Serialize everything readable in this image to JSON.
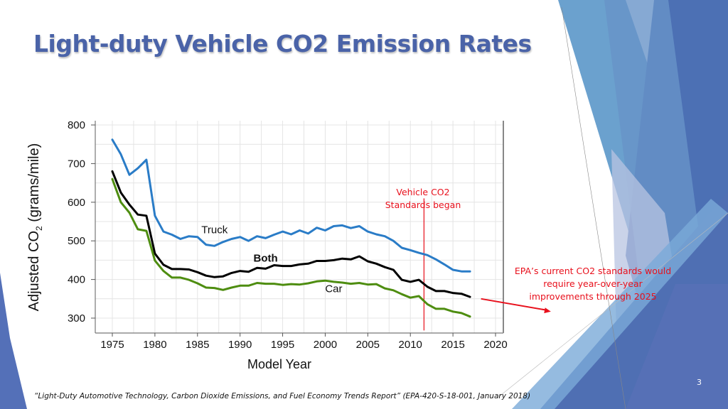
{
  "slide": {
    "title": "Light-duty Vehicle CO2 Emission Rates",
    "page_number": "3",
    "footer_citation": "“Light-Duty Automotive Technology, Carbon Dioxide Emissions, and Fuel Economy Trends Report”  (EPA-420-S-18-001, January 2018)",
    "annotations": {
      "standards_began": [
        "Vehicle CO2",
        "Standards began"
      ],
      "epa_note": [
        "EPA’s current CO2 standards would",
        "require year-over-year",
        "improvements through 2025"
      ]
    },
    "colors": {
      "title": "#4a63a8",
      "annotation": "#e8101c",
      "truck": "#2a7cc7",
      "both": "#000000",
      "car": "#4e8d10"
    }
  },
  "chart_data": {
    "type": "line",
    "title": "",
    "xlabel": "Model Year",
    "ylabel": "Adjusted CO2 (grams/mile)",
    "ylabel_parts": {
      "main": "Adjusted CO",
      "sub": "2",
      "unit": " (grams/mile)"
    },
    "xlim": [
      1973,
      2021
    ],
    "ylim": [
      280,
      810
    ],
    "xticks": [
      1975,
      1980,
      1985,
      1990,
      1995,
      2000,
      2005,
      2010,
      2015,
      2020
    ],
    "yticks": [
      300,
      400,
      500,
      600,
      700,
      800
    ],
    "grid": true,
    "x": [
      1975,
      1976,
      1977,
      1978,
      1979,
      1980,
      1981,
      1982,
      1983,
      1984,
      1985,
      1986,
      1987,
      1988,
      1989,
      1990,
      1991,
      1992,
      1993,
      1994,
      1995,
      1996,
      1997,
      1998,
      1999,
      2000,
      2001,
      2002,
      2003,
      2004,
      2005,
      2006,
      2007,
      2008,
      2009,
      2010,
      2011,
      2012,
      2013,
      2014,
      2015,
      2016,
      2017
    ],
    "series": [
      {
        "name": "Truck",
        "values": [
          762,
          724,
          671,
          688,
          710,
          565,
          524,
          516,
          505,
          512,
          510,
          490,
          487,
          497,
          505,
          510,
          500,
          512,
          507,
          516,
          524,
          517,
          527,
          519,
          534,
          527,
          538,
          540,
          533,
          538,
          524,
          517,
          512,
          500,
          482,
          476,
          469,
          463,
          452,
          439,
          425,
          421,
          421
        ]
      },
      {
        "name": "Both",
        "values": [
          680,
          625,
          594,
          568,
          565,
          467,
          438,
          427,
          427,
          426,
          419,
          410,
          406,
          408,
          417,
          422,
          420,
          430,
          428,
          437,
          435,
          435,
          439,
          441,
          448,
          448,
          450,
          454,
          452,
          460,
          447,
          441,
          432,
          425,
          399,
          394,
          399,
          381,
          370,
          370,
          365,
          363,
          355
        ]
      },
      {
        "name": "Car",
        "values": [
          660,
          600,
          573,
          530,
          526,
          449,
          422,
          405,
          405,
          399,
          390,
          379,
          378,
          373,
          379,
          384,
          384,
          391,
          389,
          389,
          386,
          388,
          387,
          390,
          395,
          397,
          394,
          392,
          389,
          391,
          387,
          388,
          377,
          372,
          362,
          353,
          357,
          336,
          324,
          324,
          317,
          313,
          304
        ]
      }
    ],
    "series_labels": [
      {
        "series": "Truck",
        "text": "Truck",
        "x": 1987,
        "y": 520,
        "bold": false
      },
      {
        "series": "Both",
        "text": "Both",
        "x": 1993,
        "y": 446,
        "bold": true
      },
      {
        "series": "Car",
        "text": "Car",
        "x": 2001,
        "y": 367,
        "bold": false
      }
    ],
    "reference_line": {
      "label": "Vehicle CO2 Standards began",
      "x": 2011.6,
      "y_range": [
        268,
        610
      ]
    },
    "arrow": {
      "from": [
        2018.3,
        350
      ],
      "to": [
        2026.5,
        317
      ]
    }
  }
}
